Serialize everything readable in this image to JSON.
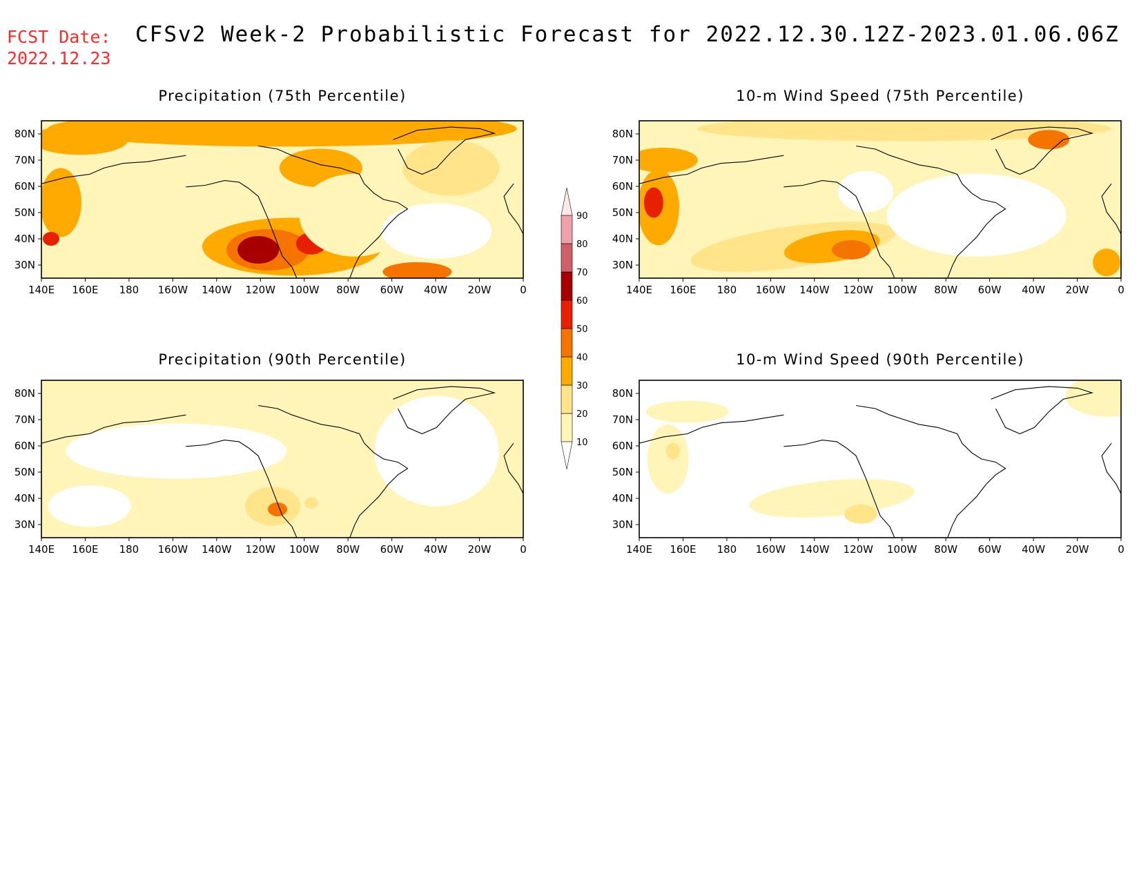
{
  "header": {
    "fcst_label": "FCST Date:",
    "fcst_date": "2022.12.23",
    "title": "CFSv2 Week-2 Probabilistic Forecast for 2022.12.30.12Z-2023.01.06.06Z"
  },
  "axes": {
    "lon_ticks": [
      "140E",
      "160E",
      "180",
      "160W",
      "140W",
      "120W",
      "100W",
      "80W",
      "60W",
      "40W",
      "20W",
      "0"
    ],
    "lat_ticks": [
      "80N",
      "70N",
      "60N",
      "50N",
      "40N",
      "30N"
    ]
  },
  "panels": [
    {
      "id": "precip75",
      "title": "Precipitation (75th Percentile)",
      "level": 3
    },
    {
      "id": "wind75",
      "title": "10-m Wind Speed (75th Percentile)",
      "level": 2
    },
    {
      "id": "precip90",
      "title": "Precipitation (90th Percentile)",
      "level": 1
    },
    {
      "id": "wind90",
      "title": "10-m Wind Speed (90th Percentile)",
      "level": 0
    }
  ],
  "colorbar": {
    "levels": [
      "10",
      "20",
      "30",
      "40",
      "50",
      "60",
      "70",
      "80",
      "90"
    ],
    "colors": [
      "#ffffff",
      "#fff5b8",
      "#ffe48a",
      "#ffaa00",
      "#f57300",
      "#e62000",
      "#a80000",
      "#d06068",
      "#f0a0a8",
      "#ffe8ea"
    ]
  }
}
